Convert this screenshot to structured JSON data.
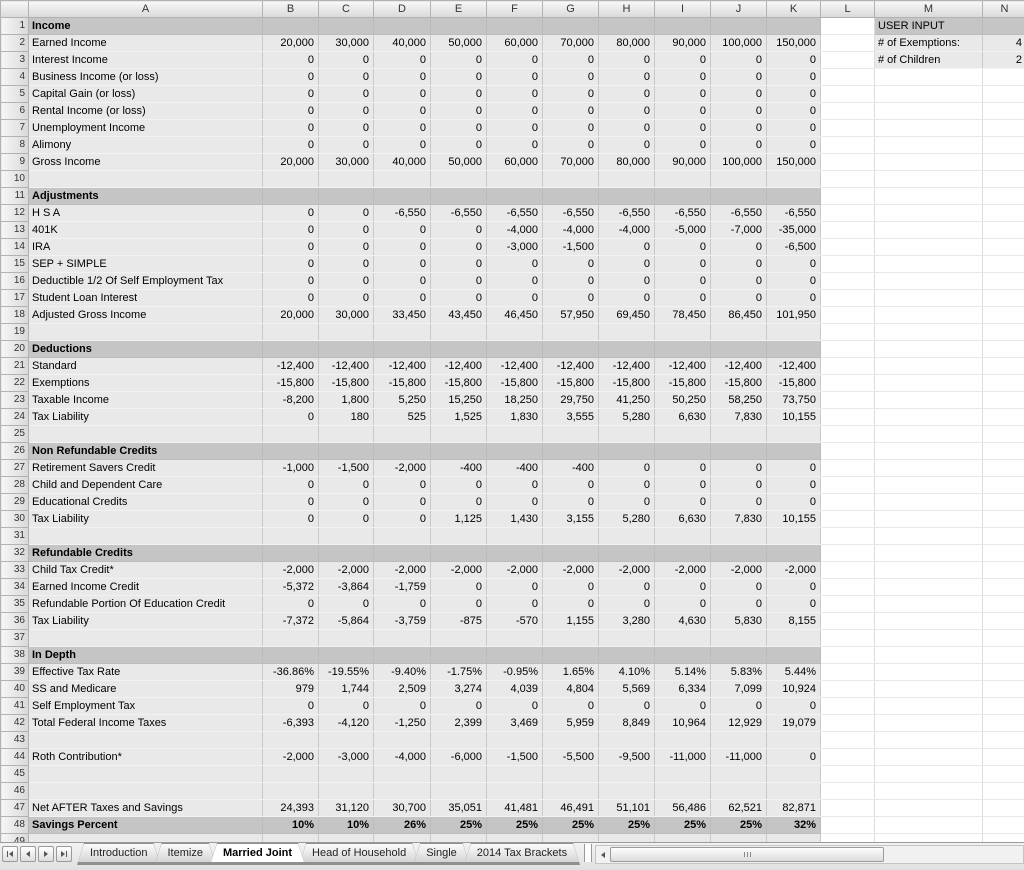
{
  "sheet": {
    "column_headers": [
      "A",
      "B",
      "C",
      "D",
      "E",
      "F",
      "G",
      "H",
      "I",
      "J",
      "K",
      "L",
      "M",
      "N"
    ],
    "user_input": {
      "title": "USER INPUT",
      "fields": [
        {
          "label": "# of Exemptions:",
          "value": "4"
        },
        {
          "label": "# of Children",
          "value": "2"
        }
      ]
    },
    "rows": [
      {
        "n": 1,
        "label": "Income",
        "style": "section",
        "vals": []
      },
      {
        "n": 2,
        "label": "Earned Income",
        "style": "data",
        "vals": [
          "20,000",
          "30,000",
          "40,000",
          "50,000",
          "60,000",
          "70,000",
          "80,000",
          "90,000",
          "100,000",
          "150,000"
        ]
      },
      {
        "n": 3,
        "label": "Interest Income",
        "style": "data",
        "vals": [
          "0",
          "0",
          "0",
          "0",
          "0",
          "0",
          "0",
          "0",
          "0",
          "0"
        ]
      },
      {
        "n": 4,
        "label": "Business Income (or loss)",
        "style": "data",
        "vals": [
          "0",
          "0",
          "0",
          "0",
          "0",
          "0",
          "0",
          "0",
          "0",
          "0"
        ]
      },
      {
        "n": 5,
        "label": "Capital Gain (or loss)",
        "style": "data",
        "vals": [
          "0",
          "0",
          "0",
          "0",
          "0",
          "0",
          "0",
          "0",
          "0",
          "0"
        ]
      },
      {
        "n": 6,
        "label": "Rental Income (or loss)",
        "style": "data",
        "vals": [
          "0",
          "0",
          "0",
          "0",
          "0",
          "0",
          "0",
          "0",
          "0",
          "0"
        ]
      },
      {
        "n": 7,
        "label": "Unemployment Income",
        "style": "data",
        "vals": [
          "0",
          "0",
          "0",
          "0",
          "0",
          "0",
          "0",
          "0",
          "0",
          "0"
        ]
      },
      {
        "n": 8,
        "label": "Alimony",
        "style": "data",
        "vals": [
          "0",
          "0",
          "0",
          "0",
          "0",
          "0",
          "0",
          "0",
          "0",
          "0"
        ]
      },
      {
        "n": 9,
        "label": "Gross Income",
        "style": "data",
        "vals": [
          "20,000",
          "30,000",
          "40,000",
          "50,000",
          "60,000",
          "70,000",
          "80,000",
          "90,000",
          "100,000",
          "150,000"
        ]
      },
      {
        "n": 10,
        "label": "",
        "style": "blank",
        "vals": []
      },
      {
        "n": 11,
        "label": "Adjustments",
        "style": "section",
        "vals": []
      },
      {
        "n": 12,
        "label": "H S A",
        "style": "data",
        "vals": [
          "0",
          "0",
          "-6,550",
          "-6,550",
          "-6,550",
          "-6,550",
          "-6,550",
          "-6,550",
          "-6,550",
          "-6,550"
        ]
      },
      {
        "n": 13,
        "label": "401K",
        "style": "data",
        "vals": [
          "0",
          "0",
          "0",
          "0",
          "-4,000",
          "-4,000",
          "-4,000",
          "-5,000",
          "-7,000",
          "-35,000"
        ]
      },
      {
        "n": 14,
        "label": "IRA",
        "style": "data",
        "vals": [
          "0",
          "0",
          "0",
          "0",
          "-3,000",
          "-1,500",
          "0",
          "0",
          "0",
          "-6,500"
        ]
      },
      {
        "n": 15,
        "label": "SEP + SIMPLE",
        "style": "data",
        "vals": [
          "0",
          "0",
          "0",
          "0",
          "0",
          "0",
          "0",
          "0",
          "0",
          "0"
        ]
      },
      {
        "n": 16,
        "label": "Deductible 1/2 Of Self Employment Tax",
        "style": "data",
        "vals": [
          "0",
          "0",
          "0",
          "0",
          "0",
          "0",
          "0",
          "0",
          "0",
          "0"
        ]
      },
      {
        "n": 17,
        "label": "Student Loan Interest",
        "style": "data",
        "vals": [
          "0",
          "0",
          "0",
          "0",
          "0",
          "0",
          "0",
          "0",
          "0",
          "0"
        ]
      },
      {
        "n": 18,
        "label": "Adjusted Gross Income",
        "style": "data",
        "vals": [
          "20,000",
          "30,000",
          "33,450",
          "43,450",
          "46,450",
          "57,950",
          "69,450",
          "78,450",
          "86,450",
          "101,950"
        ]
      },
      {
        "n": 19,
        "label": "",
        "style": "blank",
        "vals": []
      },
      {
        "n": 20,
        "label": "Deductions",
        "style": "section",
        "vals": []
      },
      {
        "n": 21,
        "label": "Standard",
        "style": "data",
        "vals": [
          "-12,400",
          "-12,400",
          "-12,400",
          "-12,400",
          "-12,400",
          "-12,400",
          "-12,400",
          "-12,400",
          "-12,400",
          "-12,400"
        ]
      },
      {
        "n": 22,
        "label": "Exemptions",
        "style": "data",
        "vals": [
          "-15,800",
          "-15,800",
          "-15,800",
          "-15,800",
          "-15,800",
          "-15,800",
          "-15,800",
          "-15,800",
          "-15,800",
          "-15,800"
        ]
      },
      {
        "n": 23,
        "label": "Taxable Income",
        "style": "data",
        "vals": [
          "-8,200",
          "1,800",
          "5,250",
          "15,250",
          "18,250",
          "29,750",
          "41,250",
          "50,250",
          "58,250",
          "73,750"
        ]
      },
      {
        "n": 24,
        "label": "Tax Liability",
        "style": "data",
        "vals": [
          "0",
          "180",
          "525",
          "1,525",
          "1,830",
          "3,555",
          "5,280",
          "6,630",
          "7,830",
          "10,155"
        ]
      },
      {
        "n": 25,
        "label": "",
        "style": "blank",
        "vals": []
      },
      {
        "n": 26,
        "label": "Non Refundable Credits",
        "style": "section",
        "vals": []
      },
      {
        "n": 27,
        "label": "Retirement Savers Credit",
        "style": "data",
        "vals": [
          "-1,000",
          "-1,500",
          "-2,000",
          "-400",
          "-400",
          "-400",
          "0",
          "0",
          "0",
          "0"
        ]
      },
      {
        "n": 28,
        "label": "Child and Dependent Care",
        "style": "data",
        "vals": [
          "0",
          "0",
          "0",
          "0",
          "0",
          "0",
          "0",
          "0",
          "0",
          "0"
        ]
      },
      {
        "n": 29,
        "label": "Educational Credits",
        "style": "data",
        "vals": [
          "0",
          "0",
          "0",
          "0",
          "0",
          "0",
          "0",
          "0",
          "0",
          "0"
        ]
      },
      {
        "n": 30,
        "label": "Tax Liability",
        "style": "data",
        "vals": [
          "0",
          "0",
          "0",
          "1,125",
          "1,430",
          "3,155",
          "5,280",
          "6,630",
          "7,830",
          "10,155"
        ]
      },
      {
        "n": 31,
        "label": "",
        "style": "blank",
        "vals": []
      },
      {
        "n": 32,
        "label": "Refundable Credits",
        "style": "section",
        "vals": []
      },
      {
        "n": 33,
        "label": "Child Tax Credit*",
        "style": "data",
        "vals": [
          "-2,000",
          "-2,000",
          "-2,000",
          "-2,000",
          "-2,000",
          "-2,000",
          "-2,000",
          "-2,000",
          "-2,000",
          "-2,000"
        ]
      },
      {
        "n": 34,
        "label": "Earned Income Credit",
        "style": "data",
        "vals": [
          "-5,372",
          "-3,864",
          "-1,759",
          "0",
          "0",
          "0",
          "0",
          "0",
          "0",
          "0"
        ]
      },
      {
        "n": 35,
        "label": "Refundable Portion Of Education Credit",
        "style": "data",
        "vals": [
          "0",
          "0",
          "0",
          "0",
          "0",
          "0",
          "0",
          "0",
          "0",
          "0"
        ]
      },
      {
        "n": 36,
        "label": "Tax Liability",
        "style": "data",
        "vals": [
          "-7,372",
          "-5,864",
          "-3,759",
          "-875",
          "-570",
          "1,155",
          "3,280",
          "4,630",
          "5,830",
          "8,155"
        ]
      },
      {
        "n": 37,
        "label": "",
        "style": "blank",
        "vals": []
      },
      {
        "n": 38,
        "label": "In Depth",
        "style": "section",
        "vals": []
      },
      {
        "n": 39,
        "label": "Effective Tax Rate",
        "style": "data",
        "vals": [
          "-36.86%",
          "-19.55%",
          "-9.40%",
          "-1.75%",
          "-0.95%",
          "1.65%",
          "4.10%",
          "5.14%",
          "5.83%",
          "5.44%"
        ]
      },
      {
        "n": 40,
        "label": "SS and Medicare",
        "style": "data",
        "vals": [
          "979",
          "1,744",
          "2,509",
          "3,274",
          "4,039",
          "4,804",
          "5,569",
          "6,334",
          "7,099",
          "10,924"
        ]
      },
      {
        "n": 41,
        "label": "Self Employment Tax",
        "style": "data",
        "vals": [
          "0",
          "0",
          "0",
          "0",
          "0",
          "0",
          "0",
          "0",
          "0",
          "0"
        ]
      },
      {
        "n": 42,
        "label": "Total Federal Income Taxes",
        "style": "data",
        "vals": [
          "-6,393",
          "-4,120",
          "-1,250",
          "2,399",
          "3,469",
          "5,959",
          "8,849",
          "10,964",
          "12,929",
          "19,079"
        ]
      },
      {
        "n": 43,
        "label": "",
        "style": "blank",
        "vals": []
      },
      {
        "n": 44,
        "label": "Roth Contribution*",
        "style": "data",
        "vals": [
          "-2,000",
          "-3,000",
          "-4,000",
          "-6,000",
          "-1,500",
          "-5,500",
          "-9,500",
          "-11,000",
          "-11,000",
          "0"
        ]
      },
      {
        "n": 45,
        "label": "",
        "style": "blank",
        "vals": []
      },
      {
        "n": 46,
        "label": "",
        "style": "blank",
        "vals": []
      },
      {
        "n": 47,
        "label": "Net AFTER Taxes and Savings",
        "style": "data",
        "vals": [
          "24,393",
          "31,120",
          "30,700",
          "35,051",
          "41,481",
          "46,491",
          "51,101",
          "56,486",
          "62,521",
          "82,871"
        ]
      },
      {
        "n": 48,
        "label": "Savings Percent",
        "style": "total",
        "vals": [
          "10%",
          "10%",
          "26%",
          "25%",
          "25%",
          "25%",
          "25%",
          "25%",
          "25%",
          "32%"
        ]
      },
      {
        "n": 49,
        "label": "",
        "style": "blank",
        "vals": []
      }
    ]
  },
  "tab_bar": {
    "nav_icons": [
      "first-sheet-icon",
      "previous-sheet-icon",
      "next-sheet-icon",
      "last-sheet-icon"
    ],
    "tabs": [
      {
        "label": "Introduction",
        "active": false
      },
      {
        "label": "Itemize",
        "active": false
      },
      {
        "label": "Married Joint",
        "active": true
      },
      {
        "label": "Head of Household",
        "active": false
      },
      {
        "label": "Single",
        "active": false
      },
      {
        "label": "2014 Tax Brackets",
        "active": false
      }
    ],
    "scrollbar_icons": {
      "left_arrow": "scroll-left-icon",
      "grip": "scrollbar-grip-icon"
    }
  },
  "colors": {
    "data_fill": "#e9e9e9",
    "section_band": "#c5c5c5",
    "grid_line": "#c9c9c9",
    "header_border": "#b2b2b2"
  }
}
